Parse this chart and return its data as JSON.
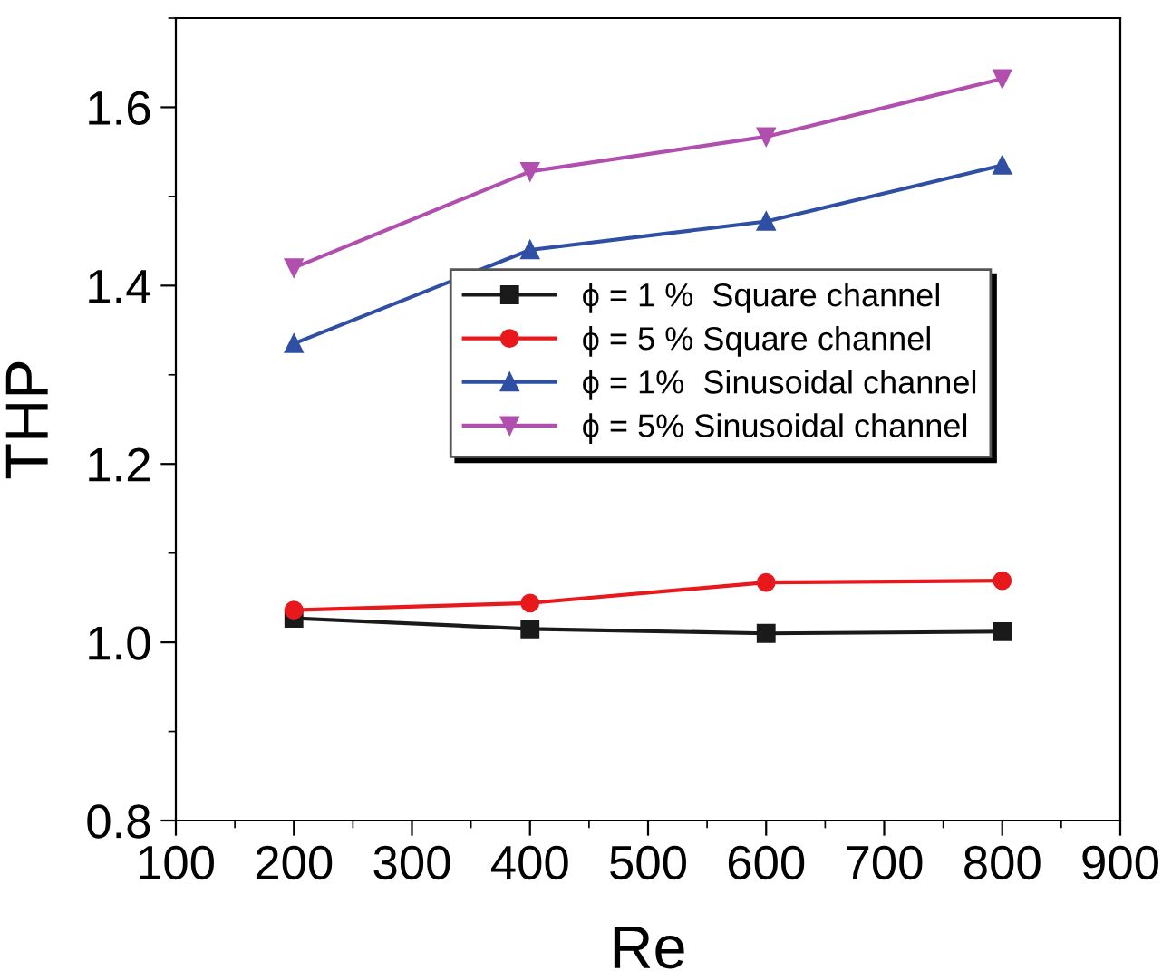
{
  "chart_data": {
    "type": "line",
    "xlabel": "Re",
    "ylabel": "THP",
    "x": [
      200,
      400,
      600,
      800
    ],
    "series": [
      {
        "name": "ϕ = 1 %  Square channel",
        "color": "#1a1a1a",
        "marker": "square",
        "values": [
          1.027,
          1.015,
          1.01,
          1.012
        ]
      },
      {
        "name": "ϕ = 5 % Square channel",
        "color": "#e8191c",
        "marker": "circle",
        "values": [
          1.036,
          1.044,
          1.067,
          1.069
        ]
      },
      {
        "name": "ϕ = 1%  Sinusoidal channel",
        "color": "#2e4fa3",
        "marker": "triangle",
        "values": [
          1.335,
          1.44,
          1.472,
          1.535
        ]
      },
      {
        "name": "ϕ = 5% Sinusoidal channel",
        "color": "#b04fae",
        "marker": "triangle_down",
        "values": [
          1.42,
          1.528,
          1.567,
          1.632
        ]
      }
    ],
    "xlim": [
      100,
      900
    ],
    "xticks": [
      100,
      200,
      300,
      400,
      500,
      600,
      700,
      800,
      900
    ],
    "ylim": [
      0.8,
      1.7
    ],
    "yticks": [
      {
        "value": 0.8,
        "label": "0.8"
      },
      {
        "value": 1.0,
        "label": "1.0"
      },
      {
        "value": 1.2,
        "label": "1.2"
      },
      {
        "value": 1.4,
        "label": "1.4"
      },
      {
        "value": 1.6,
        "label": "1.6"
      }
    ],
    "grid": false,
    "legend": "right",
    "line_style": "solid"
  }
}
